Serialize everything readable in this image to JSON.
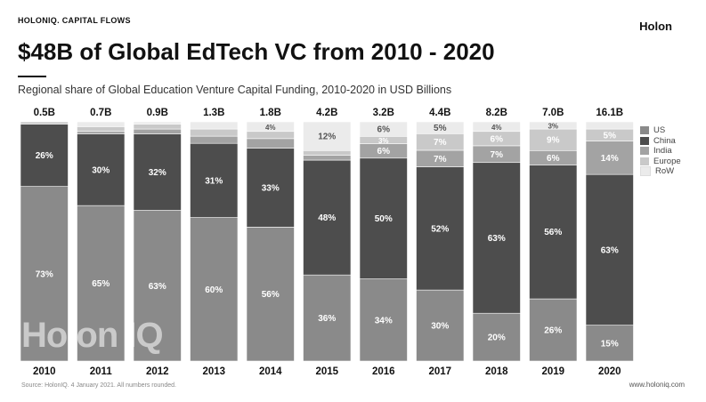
{
  "header": {
    "brand": "HOLONIQ.",
    "brand_section": "CAPITAL FLOWS",
    "logo": "Holon",
    "title": "$48B of Global EdTech VC from 2010 - 2020",
    "subtitle": "Regional share of Global Education Venture Capital Funding, 2010-2020 in USD Billions"
  },
  "footer": {
    "source": "Source: HolonIQ. 4 January 2021. All numbers rounded.",
    "website": "www.holoniq.com",
    "watermark": "Holon IQ"
  },
  "colors": {
    "US": "#8a8a8a",
    "China": "#4d4d4d",
    "India": "#a3a3a3",
    "Europe": "#c9c9c9",
    "RoW": "#ebebeb"
  },
  "chart_data": {
    "type": "bar",
    "stacked": true,
    "normalized": true,
    "categories": [
      "2010",
      "2011",
      "2012",
      "2013",
      "2014",
      "2015",
      "2016",
      "2017",
      "2018",
      "2019",
      "2020"
    ],
    "totals": [
      "0.5B",
      "0.7B",
      "0.9B",
      "1.3B",
      "1.8B",
      "4.2B",
      "3.2B",
      "4.4B",
      "8.2B",
      "7.0B",
      "16.1B"
    ],
    "series": [
      {
        "name": "US",
        "values": [
          73,
          65,
          63,
          60,
          56,
          36,
          34,
          30,
          20,
          26,
          15
        ],
        "labels": [
          "73%",
          "65%",
          "63%",
          "60%",
          "56%",
          "36%",
          "34%",
          "30%",
          "20%",
          "26%",
          "15%"
        ]
      },
      {
        "name": "China",
        "values": [
          26,
          30,
          32,
          31,
          33,
          48,
          50,
          52,
          63,
          56,
          63
        ],
        "labels": [
          "26%",
          "30%",
          "32%",
          "31%",
          "33%",
          "48%",
          "50%",
          "52%",
          "63%",
          "56%",
          "63%"
        ]
      },
      {
        "name": "India",
        "values": [
          0,
          1,
          2,
          3,
          4,
          2,
          6,
          7,
          7,
          6,
          14
        ],
        "labels": [
          "",
          "",
          "",
          "",
          "",
          "",
          "6%",
          "7%",
          "7%",
          "6%",
          "14%"
        ]
      },
      {
        "name": "Europe",
        "values": [
          1,
          2,
          2,
          3,
          3,
          2,
          3,
          7,
          6,
          9,
          5
        ],
        "labels": [
          "",
          "",
          "",
          "",
          "",
          "",
          "3%",
          "7%",
          "6%",
          "9%",
          "5%"
        ]
      },
      {
        "name": "RoW",
        "values": [
          0,
          2,
          1,
          3,
          4,
          12,
          6,
          5,
          4,
          3,
          3
        ],
        "labels": [
          "",
          "",
          "",
          "",
          "4%",
          "12%",
          "6%",
          "5%",
          "4%",
          "3%",
          ""
        ]
      }
    ],
    "ylim": [
      0,
      100
    ],
    "legend_position": "right"
  }
}
